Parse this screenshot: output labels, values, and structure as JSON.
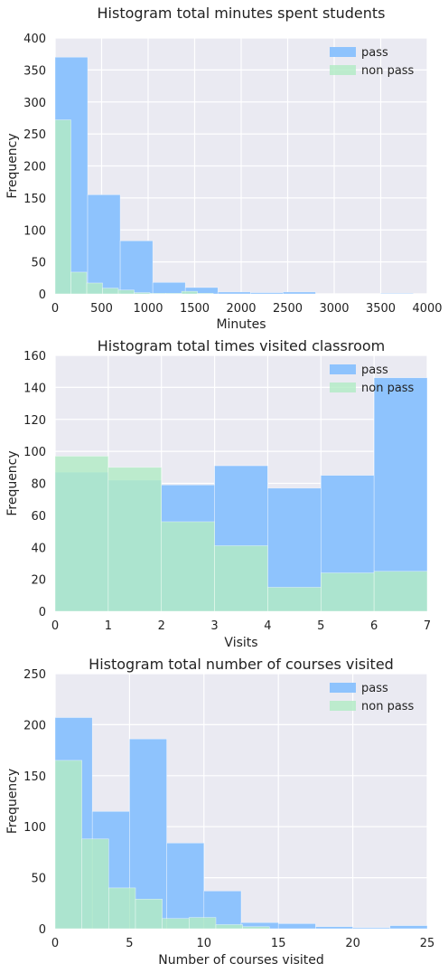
{
  "chart_data": [
    {
      "type": "bar",
      "title": "Histogram total minutes spent students",
      "xlabel": "Minutes",
      "ylabel": "Frequency",
      "xlim": [
        0,
        4000
      ],
      "ylim": [
        0,
        400
      ],
      "xticks": [
        0,
        500,
        1000,
        1500,
        2000,
        2500,
        3000,
        3500,
        4000
      ],
      "yticks": [
        0,
        50,
        100,
        150,
        200,
        250,
        300,
        350,
        400
      ],
      "grid": true,
      "legend_position": "top-right",
      "series": [
        {
          "name": "pass",
          "color": "#8EC3FD",
          "bins": [
            [
              0,
              350,
              370
            ],
            [
              350,
              700,
              155
            ],
            [
              700,
              1050,
              83
            ],
            [
              1050,
              1400,
              18
            ],
            [
              1400,
              1750,
              10
            ],
            [
              1750,
              2100,
              3
            ],
            [
              2100,
              2450,
              2
            ],
            [
              2450,
              2800,
              3
            ],
            [
              2800,
              3150,
              0
            ],
            [
              3150,
              3500,
              0
            ],
            [
              3500,
              3850,
              1
            ]
          ]
        },
        {
          "name": "non pass",
          "color": "#B2EBC4",
          "bins": [
            [
              0,
              170,
              272
            ],
            [
              170,
              340,
              34
            ],
            [
              340,
              510,
              17
            ],
            [
              510,
              680,
              9
            ],
            [
              680,
              850,
              6
            ],
            [
              850,
              1020,
              2
            ],
            [
              1020,
              1190,
              1
            ],
            [
              1190,
              1360,
              1
            ],
            [
              1360,
              1530,
              4
            ],
            [
              1530,
              1700,
              1
            ]
          ]
        }
      ]
    },
    {
      "type": "bar",
      "title": "Histogram total times visited classroom",
      "xlabel": "Visits",
      "ylabel": "Frequency",
      "xlim": [
        0,
        7
      ],
      "ylim": [
        0,
        160
      ],
      "xticks": [
        0,
        1,
        2,
        3,
        4,
        5,
        6,
        7
      ],
      "yticks": [
        0,
        20,
        40,
        60,
        80,
        100,
        120,
        140,
        160
      ],
      "grid": true,
      "legend_position": "top-right",
      "series": [
        {
          "name": "pass",
          "color": "#8EC3FD",
          "bins": [
            [
              0,
              1,
              87
            ],
            [
              1,
              2,
              82
            ],
            [
              2,
              3,
              79
            ],
            [
              3,
              4,
              91
            ],
            [
              4,
              5,
              77
            ],
            [
              5,
              6,
              85
            ],
            [
              6,
              7,
              146
            ]
          ]
        },
        {
          "name": "non pass",
          "color": "#B2EBC4",
          "bins": [
            [
              0,
              1,
              97
            ],
            [
              1,
              2,
              90
            ],
            [
              2,
              3,
              56
            ],
            [
              3,
              4,
              41
            ],
            [
              4,
              5,
              15
            ],
            [
              5,
              6,
              24
            ],
            [
              6,
              7,
              25
            ]
          ]
        }
      ]
    },
    {
      "type": "bar",
      "title": "Histogram total number of courses visited",
      "xlabel": "Number of courses visited",
      "ylabel": "Frequency",
      "xlim": [
        0,
        25
      ],
      "ylim": [
        0,
        250
      ],
      "xticks": [
        0,
        5,
        10,
        15,
        20,
        25
      ],
      "yticks": [
        0,
        50,
        100,
        150,
        200,
        250
      ],
      "grid": true,
      "legend_position": "top-right",
      "series": [
        {
          "name": "pass",
          "color": "#8EC3FD",
          "bins": [
            [
              0,
              2.5,
              207
            ],
            [
              2.5,
              5,
              115
            ],
            [
              5,
              7.5,
              186
            ],
            [
              7.5,
              10,
              84
            ],
            [
              10,
              12.5,
              37
            ],
            [
              12.5,
              15,
              6
            ],
            [
              15,
              17.5,
              5
            ],
            [
              17.5,
              20,
              2
            ],
            [
              20,
              22.5,
              1
            ],
            [
              22.5,
              25,
              3
            ]
          ]
        },
        {
          "name": "non pass",
          "color": "#B2EBC4",
          "bins": [
            [
              0,
              1.8,
              165
            ],
            [
              1.8,
              3.6,
              88
            ],
            [
              3.6,
              5.4,
              40
            ],
            [
              5.4,
              7.2,
              29
            ],
            [
              7.2,
              9,
              10
            ],
            [
              9,
              10.8,
              11
            ],
            [
              10.8,
              12.6,
              4
            ],
            [
              12.6,
              14.4,
              2
            ]
          ]
        }
      ]
    }
  ]
}
